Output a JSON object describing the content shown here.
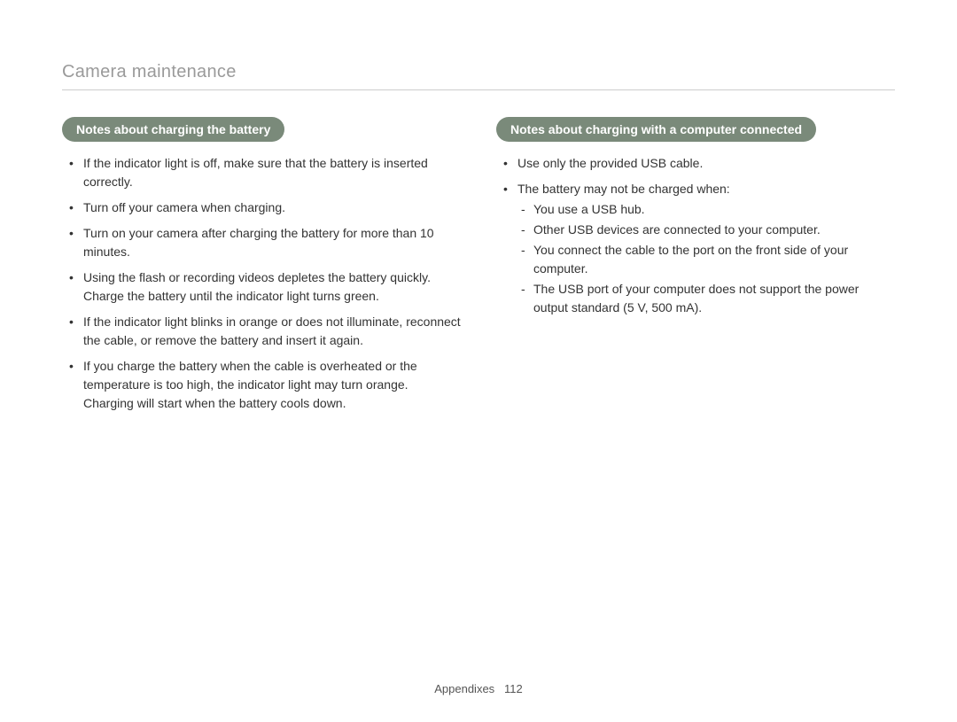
{
  "page_title": "Camera maintenance",
  "left_column": {
    "header": "Notes about charging the battery",
    "bullets": [
      "If the indicator light is off, make sure that the battery is inserted correctly.",
      "Turn off your camera when charging.",
      "Turn on your camera after charging the battery for more than 10 minutes.",
      "Using the flash or recording videos depletes the battery quickly. Charge the battery until the indicator light turns green.",
      "If the indicator light blinks in orange or does not illuminate, reconnect the cable, or remove the battery and insert it again.",
      "If you charge the battery when the cable is overheated or the temperature is too high, the indicator light may turn orange. Charging will start when the battery cools down."
    ]
  },
  "right_column": {
    "header": "Notes about charging with a computer connected",
    "bullets": [
      {
        "text": "Use only the provided USB cable."
      },
      {
        "text": "The battery may not be charged when:",
        "sub": [
          "You use a USB hub.",
          "Other USB devices are connected to your computer.",
          "You connect the cable to the port on the front side of your computer.",
          "The USB port of your computer does not support the power output standard (5 V, 500 mA)."
        ]
      }
    ]
  },
  "footer": {
    "section": "Appendixes",
    "page_number": "112"
  },
  "colors": {
    "header_bg": "#7a8a7a",
    "header_text": "#ffffff",
    "title_text": "#9a9a9a",
    "body_text": "#333333",
    "divider": "#cccccc",
    "background": "#ffffff"
  }
}
